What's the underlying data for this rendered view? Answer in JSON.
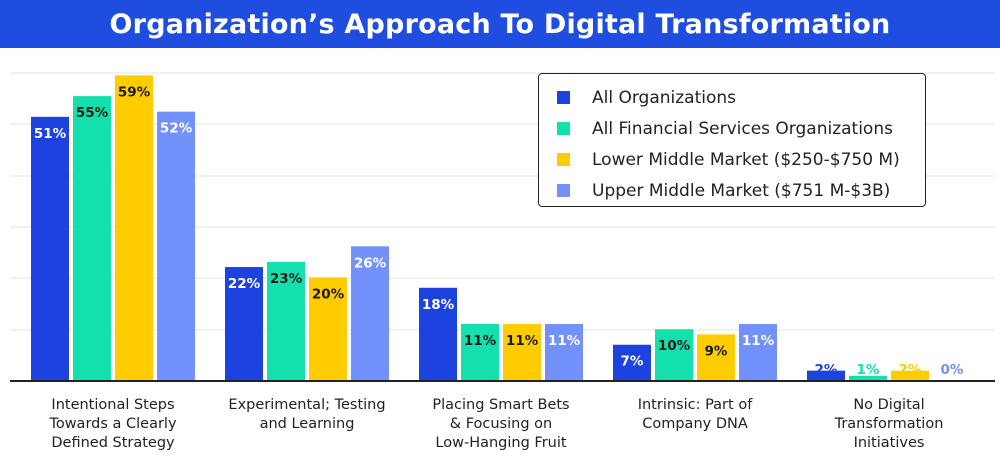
{
  "chart_data": {
    "type": "bar",
    "title": "Organization’s Approach To Digital Transformation",
    "categories": [
      "Intentional Steps\nTowards a Clearly\nDefined Strategy",
      "Experimental; Testing\nand Learning",
      "Placing Smart Bets\n& Focusing on\nLow-Hanging Fruit",
      "Intrinsic: Part of\nCompany DNA",
      "No Digital\nTransformation\nInitiatives"
    ],
    "series": [
      {
        "name": "All Organizations",
        "color": "#1c43e0",
        "values": [
          51,
          22,
          18,
          7,
          2
        ],
        "labels": [
          "51%",
          "22%",
          "18%",
          "7%",
          "2%"
        ]
      },
      {
        "name": "All Financial Services Organizations",
        "color": "#14e0ad",
        "values": [
          55,
          23,
          11,
          10,
          1
        ],
        "labels": [
          "55%",
          "23%",
          "11%",
          "10%",
          "1%"
        ]
      },
      {
        "name": "Lower Middle Market ($250-$750 M)",
        "color": "#ffcc00",
        "values": [
          59,
          20,
          11,
          9,
          2
        ],
        "labels": [
          "59%",
          "20%",
          "11%",
          "9%",
          "2%"
        ]
      },
      {
        "name": "Upper Middle Market ($751 M-$3B)",
        "color": "#7391fb",
        "values": [
          52,
          26,
          11,
          11,
          0
        ],
        "labels": [
          "52%",
          "26%",
          "11%",
          "11%",
          "0%"
        ]
      }
    ],
    "ylim": [
      0,
      60
    ],
    "grid": true,
    "legend_position": "top-right",
    "xlabel": "",
    "ylabel": ""
  }
}
